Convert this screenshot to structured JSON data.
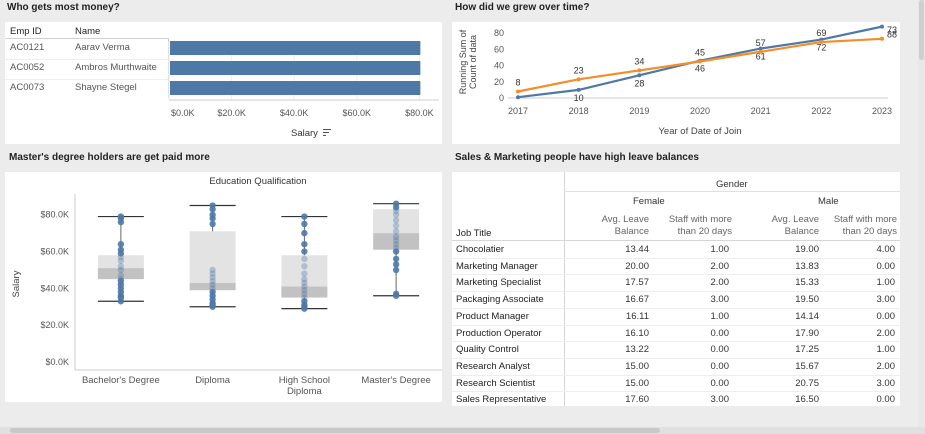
{
  "dashboard": {
    "panel1": {
      "title": "Who gets most money?",
      "col_id": "Emp ID",
      "col_name": "Name",
      "rows": [
        {
          "id": "AC0121",
          "name": "Aarav Verma"
        },
        {
          "id": "AC0052",
          "name": "Ambros Murthwaite"
        },
        {
          "id": "AC0073",
          "name": "Shayne Stegel"
        }
      ],
      "axis_label": "Salary",
      "sort_icon": "sort-descending-icon"
    },
    "panel2": {
      "title": "How did we grew over time?"
    },
    "panel3": {
      "title": "Master's degree holders are get paid more"
    },
    "panel4": {
      "title": "Sales & Marketing people have high leave balances",
      "gender_header": "Gender",
      "female": "Female",
      "male": "Male",
      "col_avg": [
        "Avg. Leave",
        "Balance"
      ],
      "col_staff": [
        "Staff with more",
        "than 20 days"
      ],
      "job_title_header": "Job Title",
      "rows": [
        {
          "job": "Chocolatier",
          "f_avg": "13.44",
          "f_staff": "1.00",
          "m_avg": "19.00",
          "m_staff": "4.00"
        },
        {
          "job": "Marketing Manager",
          "f_avg": "20.00",
          "f_staff": "2.00",
          "m_avg": "13.83",
          "m_staff": "0.00"
        },
        {
          "job": "Marketing Specialist",
          "f_avg": "17.57",
          "f_staff": "2.00",
          "m_avg": "15.33",
          "m_staff": "1.00"
        },
        {
          "job": "Packaging Associate",
          "f_avg": "16.67",
          "f_staff": "3.00",
          "m_avg": "19.50",
          "m_staff": "3.00"
        },
        {
          "job": "Product Manager",
          "f_avg": "16.11",
          "f_staff": "1.00",
          "m_avg": "14.14",
          "m_staff": "0.00"
        },
        {
          "job": "Production Operator",
          "f_avg": "16.10",
          "f_staff": "0.00",
          "m_avg": "17.90",
          "m_staff": "2.00"
        },
        {
          "job": "Quality Control",
          "f_avg": "13.22",
          "f_staff": "0.00",
          "m_avg": "17.25",
          "m_staff": "1.00"
        },
        {
          "job": "Research Analyst",
          "f_avg": "15.00",
          "f_staff": "0.00",
          "m_avg": "15.67",
          "m_staff": "2.00"
        },
        {
          "job": "Research Scientist",
          "f_avg": "15.00",
          "f_staff": "0.00",
          "m_avg": "20.75",
          "m_staff": "3.00"
        },
        {
          "job": "Sales Representative",
          "f_avg": "17.60",
          "f_staff": "3.00",
          "m_avg": "16.50",
          "m_staff": "0.00"
        }
      ]
    }
  },
  "colors": {
    "blue": "#4e79a7",
    "orange": "#f28e2b",
    "box_light": "#e3e3e3",
    "box_dark": "#c2c2c2"
  },
  "chart_data": [
    {
      "type": "bar",
      "orientation": "horizontal",
      "categories": [
        "Aarav Verma",
        "Ambros Murthwaite",
        "Shayne Stegel"
      ],
      "values": [
        80000,
        80000,
        80000
      ],
      "xlabel": "Salary",
      "xlim": [
        0,
        85000
      ],
      "xticks": [
        0,
        20000,
        40000,
        60000,
        80000
      ],
      "xtick_labels": [
        "$0.0K",
        "$20.0K",
        "$40.0K",
        "$60.0K",
        "$80.0K"
      ]
    },
    {
      "type": "line",
      "x": [
        "2017",
        "2018",
        "2019",
        "2020",
        "2021",
        "2022",
        "2023"
      ],
      "xlabel": "Year of Date of Join",
      "ylabel": [
        "Running Sum of",
        "Count of data"
      ],
      "ylim": [
        0,
        90
      ],
      "yticks": [
        0,
        20,
        40,
        60,
        80
      ],
      "ytick_labels": [
        "0",
        "20",
        "40",
        "60",
        "80"
      ],
      "series": [
        {
          "color": "#4e79a7",
          "values": [
            1,
            10,
            28,
            46,
            61,
            72,
            88
          ],
          "labels": [
            "",
            "10",
            "28",
            "46",
            "61",
            "72",
            "88"
          ]
        },
        {
          "color": "#f28e2b",
          "values": [
            8,
            23,
            34,
            45,
            57,
            69,
            73
          ],
          "labels": [
            "8",
            "23",
            "34",
            "45",
            "57",
            "69",
            "73"
          ]
        }
      ]
    },
    {
      "type": "box",
      "title": "Education Qualification",
      "ylabel": "Salary",
      "ylim": [
        0,
        88000
      ],
      "yticks": [
        0,
        20000,
        40000,
        60000,
        80000
      ],
      "ytick_labels": [
        "$0.0K",
        "$20.0K",
        "$40.0K",
        "$60.0K",
        "$80.0K"
      ],
      "categories": [
        {
          "label": [
            "Bachelor's Degree"
          ],
          "min": 33000,
          "q1": 45000,
          "median": 51000,
          "q3": 58000,
          "max": 79000,
          "points": [
            33000,
            35000,
            36000,
            38000,
            40000,
            42000,
            44000,
            45000,
            47000,
            50000,
            52000,
            55000,
            57000,
            59000,
            61000,
            64000,
            76000,
            78000,
            79000
          ]
        },
        {
          "label": [
            "Diploma"
          ],
          "min": 30000,
          "q1": 39000,
          "median": 43000,
          "q3": 71000,
          "max": 85000,
          "points": [
            30000,
            31000,
            32000,
            34000,
            36000,
            38000,
            40000,
            42000,
            44000,
            46000,
            48000,
            50000,
            75000,
            78000,
            80000,
            83000,
            85000
          ]
        },
        {
          "label": [
            "High School",
            "Diploma"
          ],
          "min": 29000,
          "q1": 35000,
          "median": 41000,
          "q3": 58000,
          "max": 79000,
          "points": [
            29000,
            30000,
            31000,
            33000,
            35000,
            37000,
            39000,
            41000,
            43000,
            45000,
            48000,
            52000,
            56000,
            60000,
            64000,
            70000,
            75000,
            79000
          ]
        },
        {
          "label": [
            "Master's Degree"
          ],
          "min": 36000,
          "q1": 61000,
          "median": 70000,
          "q3": 83000,
          "max": 86000,
          "points": [
            36000,
            37000,
            50000,
            53000,
            56000,
            60000,
            62000,
            64000,
            66000,
            68000,
            71000,
            74000,
            77000,
            80000,
            82000,
            84000,
            86000
          ]
        }
      ]
    }
  ]
}
